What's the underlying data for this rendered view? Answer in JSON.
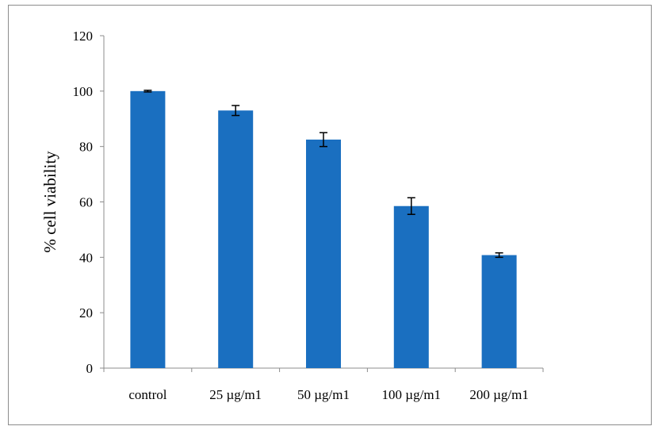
{
  "chart_data": {
    "type": "bar",
    "title": "",
    "xlabel": "",
    "ylabel": "% cell viability",
    "categories": [
      "control",
      "25 µg/m1",
      "50 µg/m1",
      "100 µg/m1",
      "200 µg/m1"
    ],
    "series": [
      {
        "values": [
          100,
          93,
          82.5,
          58.5,
          40.8
        ],
        "errors": [
          0.3,
          1.8,
          2.5,
          3.0,
          0.8
        ]
      }
    ],
    "ylim": [
      0,
      120
    ],
    "yticks": [
      0,
      20,
      40,
      60,
      80,
      100,
      120
    ],
    "grid": false,
    "legend": "none",
    "colors": {
      "bar": "#1a6fc0",
      "axis": "#8c8c8c",
      "error_bar": "#000000"
    }
  }
}
